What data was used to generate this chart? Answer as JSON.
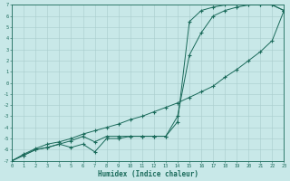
{
  "xlabel": "Humidex (Indice chaleur)",
  "background_color": "#c8e8e8",
  "grid_color": "#a8cccc",
  "line_color": "#1a6a5a",
  "xlim": [
    0,
    23
  ],
  "ylim": [
    -7,
    7
  ],
  "xticks": [
    0,
    1,
    2,
    3,
    4,
    5,
    6,
    7,
    8,
    9,
    10,
    11,
    12,
    13,
    14,
    15,
    16,
    17,
    18,
    19,
    20,
    21,
    22,
    23
  ],
  "yticks": [
    -7,
    -6,
    -5,
    -4,
    -3,
    -2,
    -1,
    0,
    1,
    2,
    3,
    4,
    5,
    6,
    7
  ],
  "s1_x": [
    0,
    1,
    2,
    3,
    4,
    5,
    6,
    7,
    8,
    9,
    10,
    11,
    12,
    13,
    14,
    15,
    16,
    17,
    18,
    19,
    20,
    21,
    22,
    23
  ],
  "s1_y": [
    -7,
    -6.5,
    -6.0,
    -5.8,
    -5.5,
    -5.8,
    -5.5,
    -6.2,
    -5.0,
    -5.0,
    -4.8,
    -4.8,
    -4.8,
    -4.8,
    -3.5,
    5.5,
    6.5,
    6.8,
    7.0,
    7.0,
    7.0,
    7.0,
    7.0,
    6.5
  ],
  "s2_x": [
    0,
    1,
    2,
    3,
    4,
    5,
    6,
    7,
    8,
    9,
    10,
    11,
    12,
    13,
    14,
    15,
    16,
    17,
    18,
    19,
    20,
    21,
    22,
    23
  ],
  "s2_y": [
    -7,
    -6.5,
    -6.0,
    -5.8,
    -5.5,
    -5.2,
    -4.8,
    -5.3,
    -4.8,
    -4.8,
    -4.8,
    -4.8,
    -4.8,
    -4.8,
    -3.0,
    2.5,
    4.5,
    6.0,
    6.5,
    6.8,
    7.0,
    7.0,
    7.0,
    6.5
  ],
  "s3_x": [
    0,
    1,
    2,
    3,
    4,
    5,
    6,
    7,
    8,
    9,
    10,
    11,
    12,
    13,
    14,
    15,
    16,
    17,
    18,
    19,
    20,
    21,
    22,
    23
  ],
  "s3_y": [
    -7,
    -6.4,
    -5.9,
    -5.5,
    -5.3,
    -5.0,
    -4.6,
    -4.3,
    -4.0,
    -3.7,
    -3.3,
    -3.0,
    -2.6,
    -2.2,
    -1.8,
    -1.3,
    -0.8,
    -0.3,
    0.5,
    1.2,
    2.0,
    2.8,
    3.8,
    6.5
  ]
}
